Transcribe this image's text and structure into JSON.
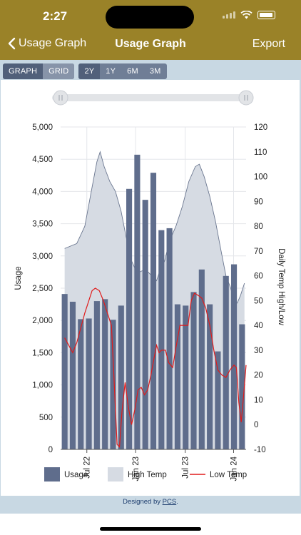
{
  "status": {
    "time": "2:27"
  },
  "nav": {
    "back_label": "Usage Graph",
    "title": "Usage Graph",
    "export_label": "Export"
  },
  "view_toggle": [
    {
      "label": "GRAPH",
      "active": true
    },
    {
      "label": "GRID",
      "active": false
    }
  ],
  "range_toggle": [
    {
      "label": "2Y",
      "active": true
    },
    {
      "label": "1Y",
      "active": false
    },
    {
      "label": "6M",
      "active": false
    },
    {
      "label": "3M",
      "active": false
    }
  ],
  "footer": {
    "prefix": "Designed by ",
    "link": "PCS",
    "suffix": "."
  },
  "colors": {
    "brand": "#9a8228",
    "usage": "#5f6d8c",
    "high_temp_fill": "#d6dbe3",
    "high_temp_line": "#6b7790",
    "low_temp": "#e01b1b"
  },
  "chart_data": {
    "type": "bar",
    "x_tick_labels": [
      "Jul 22",
      "Jan 23",
      "Jul 23",
      "Jan 24"
    ],
    "ylabel": "Usage",
    "ylabel_right": "Daily Temp High/Low",
    "ylim": [
      0,
      5000
    ],
    "ylim_right": [
      -10,
      120
    ],
    "y_ticks": [
      "0",
      "500",
      "1,000",
      "1,500",
      "2,000",
      "2,500",
      "3,000",
      "3,500",
      "4,000",
      "4,500",
      "5,000"
    ],
    "y_ticks_right": [
      "-10",
      "0",
      "10",
      "20",
      "30",
      "40",
      "50",
      "60",
      "70",
      "80",
      "90",
      "100",
      "110",
      "120"
    ],
    "grid": true,
    "legend_position": "bottom",
    "legend": [
      "Usage",
      "High Temp",
      "Low Temp"
    ],
    "series": [
      {
        "name": "Usage",
        "kind": "bar",
        "values": [
          2410,
          2290,
          2020,
          2030,
          2300,
          2330,
          2010,
          2230,
          4040,
          4570,
          3870,
          4290,
          3400,
          3430,
          2250,
          2230,
          2440,
          2790,
          2250,
          1520,
          2690,
          2870,
          1940
        ]
      },
      {
        "name": "High Temp",
        "kind": "area",
        "points": [
          [
            0,
            71
          ],
          [
            1.5,
            73
          ],
          [
            2.5,
            80
          ],
          [
            3.3,
            94
          ],
          [
            4,
            106
          ],
          [
            4.4,
            110
          ],
          [
            4.9,
            104
          ],
          [
            5.6,
            98
          ],
          [
            6.3,
            94
          ],
          [
            7,
            86
          ],
          [
            7.6,
            76
          ],
          [
            8.3,
            66
          ],
          [
            9,
            61
          ],
          [
            9.6,
            62
          ],
          [
            10.2,
            62
          ],
          [
            10.8,
            60
          ],
          [
            11.4,
            58
          ],
          [
            11.8,
            62
          ],
          [
            12.4,
            66
          ],
          [
            13,
            74
          ],
          [
            13.8,
            80
          ],
          [
            14.6,
            88
          ],
          [
            15.4,
            98
          ],
          [
            16.2,
            104
          ],
          [
            16.7,
            105
          ],
          [
            17.3,
            100
          ],
          [
            18,
            92
          ],
          [
            18.7,
            82
          ],
          [
            19.4,
            70
          ],
          [
            20,
            60
          ],
          [
            20.6,
            55
          ],
          [
            21,
            50
          ],
          [
            21.4,
            49
          ],
          [
            21.8,
            52
          ],
          [
            22.3,
            57
          ]
        ]
      },
      {
        "name": "Low Temp",
        "kind": "line",
        "points": [
          [
            0,
            35
          ],
          [
            0.5,
            32
          ],
          [
            1,
            29
          ],
          [
            1.5,
            33
          ],
          [
            2,
            39
          ],
          [
            2.5,
            45
          ],
          [
            3,
            50
          ],
          [
            3.4,
            54
          ],
          [
            3.8,
            55
          ],
          [
            4.3,
            54
          ],
          [
            4.8,
            50
          ],
          [
            5.3,
            45
          ],
          [
            5.8,
            40
          ],
          [
            6.1,
            20
          ],
          [
            6.5,
            -8
          ],
          [
            6.8,
            -9
          ],
          [
            7.1,
            5
          ],
          [
            7.5,
            17
          ],
          [
            7.9,
            7
          ],
          [
            8.3,
            0
          ],
          [
            8.7,
            6
          ],
          [
            9.1,
            14
          ],
          [
            9.5,
            15
          ],
          [
            9.9,
            12
          ],
          [
            10.3,
            14
          ],
          [
            10.7,
            20
          ],
          [
            11.1,
            27
          ],
          [
            11.4,
            32
          ],
          [
            11.7,
            29
          ],
          [
            12,
            30
          ],
          [
            12.5,
            30
          ],
          [
            12.9,
            25
          ],
          [
            13.4,
            23
          ],
          [
            13.8,
            31
          ],
          [
            14.3,
            40
          ],
          [
            14.8,
            40
          ],
          [
            15.3,
            40
          ],
          [
            15.7,
            50
          ],
          [
            16.1,
            53
          ],
          [
            16.6,
            52
          ],
          [
            17,
            51
          ],
          [
            17.5,
            47
          ],
          [
            18,
            40
          ],
          [
            18.5,
            30
          ],
          [
            19,
            22
          ],
          [
            19.5,
            20
          ],
          [
            20,
            19
          ],
          [
            20.5,
            22
          ],
          [
            21,
            24
          ],
          [
            21.3,
            23
          ],
          [
            21.6,
            9
          ],
          [
            21.9,
            1
          ],
          [
            22.2,
            12
          ],
          [
            22.5,
            24
          ]
        ]
      }
    ]
  }
}
